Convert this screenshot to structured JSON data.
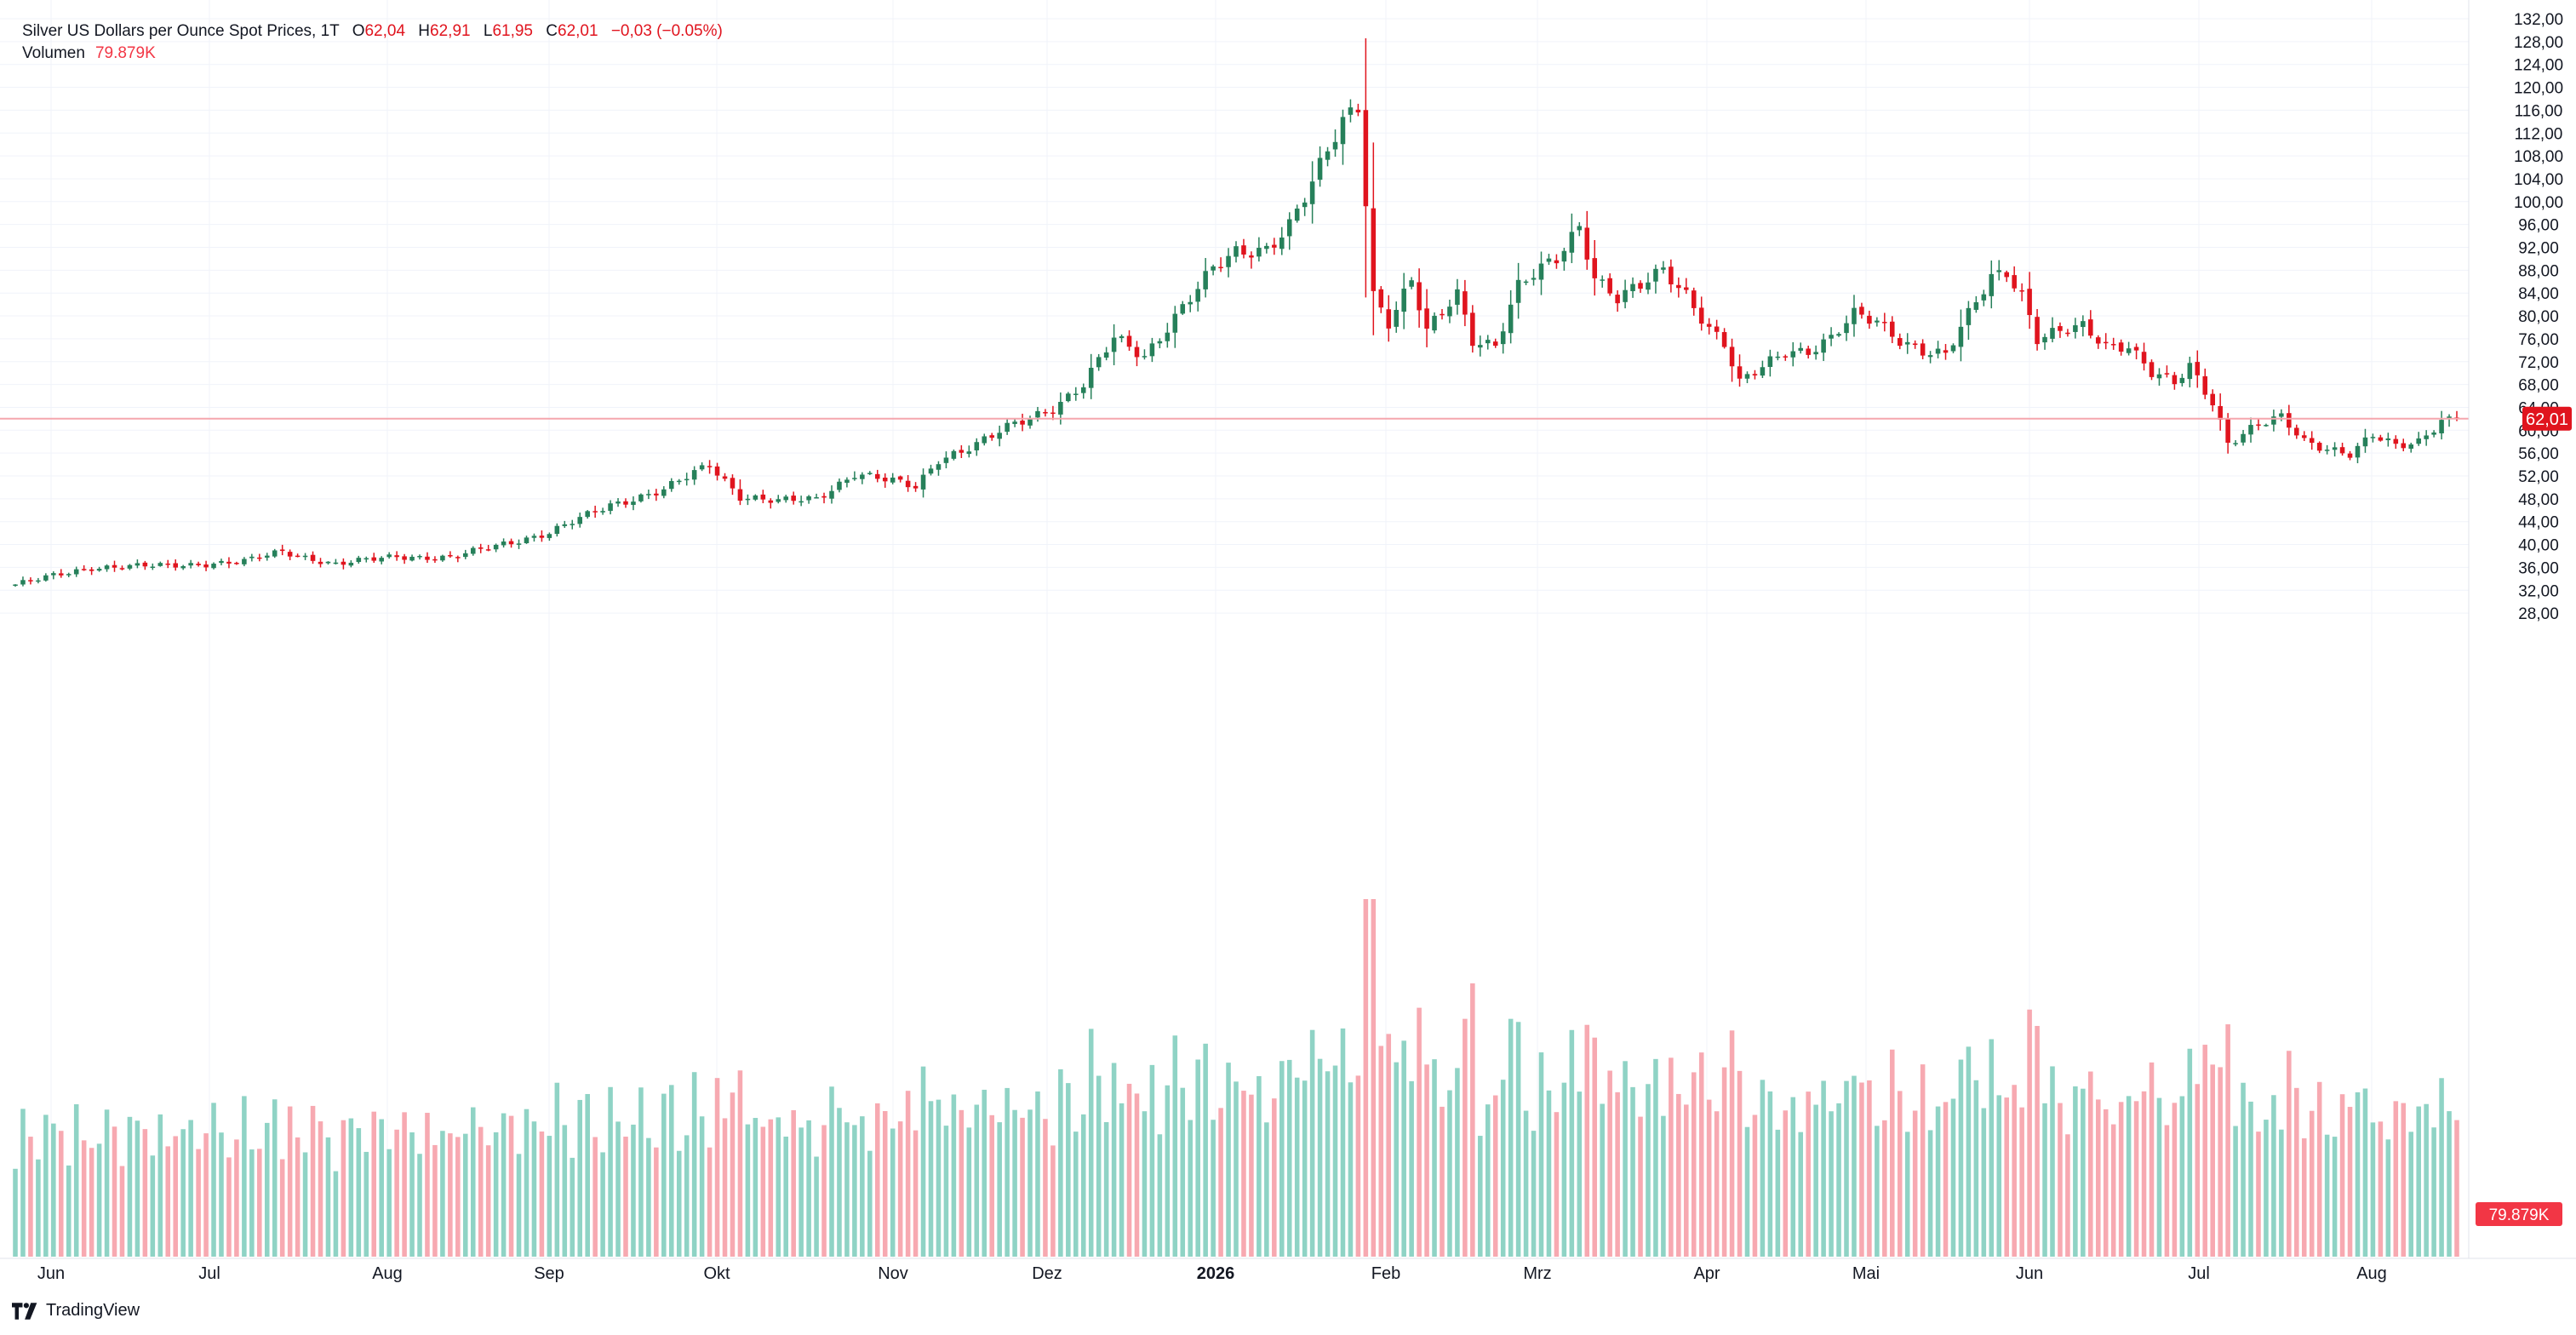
{
  "legend": {
    "title": "Silver US Dollars per Ounce Spot Prices, 1T",
    "o_label": "O",
    "o_value": "62,04",
    "h_label": "H",
    "h_value": "62,91",
    "l_label": "L",
    "l_value": "61,95",
    "c_label": "C",
    "c_value": "62,01",
    "change": "−0,03 (−0.05%)",
    "volume_label": "Volumen",
    "volume_value": "79.879K"
  },
  "price_badge": "62,01",
  "volume_badge": "79.879K",
  "branding": "TradingView",
  "colors": {
    "up": "#26805a",
    "down": "#e0141e",
    "vol_up": "#8fd3c5",
    "vol_down": "#f7a9b1",
    "badge": "#e0141e",
    "vol_badge": "#f23645",
    "price_line": "#f5a6ad",
    "grid": "#f0f3fa"
  },
  "chart_data": {
    "type": "candlestick",
    "title": "Silver US Dollars per Ounce Spot Prices",
    "interval": "1T",
    "y_axis_ticks": [
      "132,00",
      "128,00",
      "124,00",
      "120,00",
      "116,00",
      "112,00",
      "108,00",
      "104,00",
      "100,00",
      "96,00",
      "92,00",
      "88,00",
      "84,00",
      "80,00",
      "76,00",
      "72,00",
      "68,00",
      "64,00",
      "60,00",
      "56,00",
      "52,00",
      "48,00",
      "44,00",
      "40,00",
      "36,00",
      "32,00",
      "28,00"
    ],
    "ylim": [
      26,
      134
    ],
    "x_axis_ticks": [
      "Jun",
      "Jul",
      "Aug",
      "Sep",
      "Okt",
      "Nov",
      "Dez",
      "2026",
      "Feb",
      "Mrz",
      "Apr",
      "Mai",
      "Jun",
      "Jul",
      "Aug"
    ],
    "grid": true,
    "last_price": 62.01,
    "anchors": [
      [
        0,
        33
      ],
      [
        10,
        36
      ],
      [
        20,
        36.3
      ],
      [
        30,
        37
      ],
      [
        35,
        38.8
      ],
      [
        42,
        36.5
      ],
      [
        50,
        38
      ],
      [
        57,
        37.6
      ],
      [
        64,
        40.2
      ],
      [
        70,
        42
      ],
      [
        78,
        47
      ],
      [
        85,
        49.5
      ],
      [
        91,
        54
      ],
      [
        95,
        48.5
      ],
      [
        100,
        47.5
      ],
      [
        105,
        48
      ],
      [
        110,
        52.5
      ],
      [
        115,
        51
      ],
      [
        118,
        50
      ],
      [
        121,
        55
      ],
      [
        126,
        57.5
      ],
      [
        131,
        61
      ],
      [
        136,
        64
      ],
      [
        140,
        68
      ],
      [
        144,
        76
      ],
      [
        148,
        73
      ],
      [
        152,
        80
      ],
      [
        157,
        88
      ],
      [
        160,
        91
      ],
      [
        164,
        92
      ],
      [
        167,
        96
      ],
      [
        170,
        103
      ],
      [
        174,
        114
      ],
      [
        176,
        117
      ],
      [
        178,
        84
      ],
      [
        180,
        79
      ],
      [
        183,
        86
      ],
      [
        185,
        77
      ],
      [
        189,
        84
      ],
      [
        191,
        76
      ],
      [
        194,
        75
      ],
      [
        197,
        85
      ],
      [
        199,
        87
      ],
      [
        202,
        90
      ],
      [
        205,
        96
      ],
      [
        207,
        87
      ],
      [
        210,
        83
      ],
      [
        213,
        85
      ],
      [
        216,
        88
      ],
      [
        219,
        84
      ],
      [
        222,
        78
      ],
      [
        224,
        75
      ],
      [
        226,
        68
      ],
      [
        229,
        71
      ],
      [
        232,
        74
      ],
      [
        235,
        74
      ],
      [
        238,
        76
      ],
      [
        241,
        80
      ],
      [
        244,
        79
      ],
      [
        247,
        76
      ],
      [
        250,
        74
      ],
      [
        253,
        73
      ],
      [
        256,
        80
      ],
      [
        259,
        87
      ],
      [
        261,
        88
      ],
      [
        263,
        84
      ],
      [
        265,
        76
      ],
      [
        268,
        77
      ],
      [
        271,
        78
      ],
      [
        274,
        75
      ],
      [
        277,
        75
      ],
      [
        280,
        70
      ],
      [
        283,
        68
      ],
      [
        285,
        71
      ],
      [
        288,
        65
      ],
      [
        290,
        58
      ],
      [
        294,
        61
      ],
      [
        297,
        62
      ],
      [
        300,
        58
      ],
      [
        303,
        57
      ],
      [
        306,
        56
      ],
      [
        309,
        59
      ],
      [
        312,
        57
      ],
      [
        315,
        58
      ],
      [
        318,
        62
      ],
      [
        320,
        62.01
      ]
    ],
    "volume": {
      "label": "Volumen",
      "last": "79.879K"
    }
  }
}
